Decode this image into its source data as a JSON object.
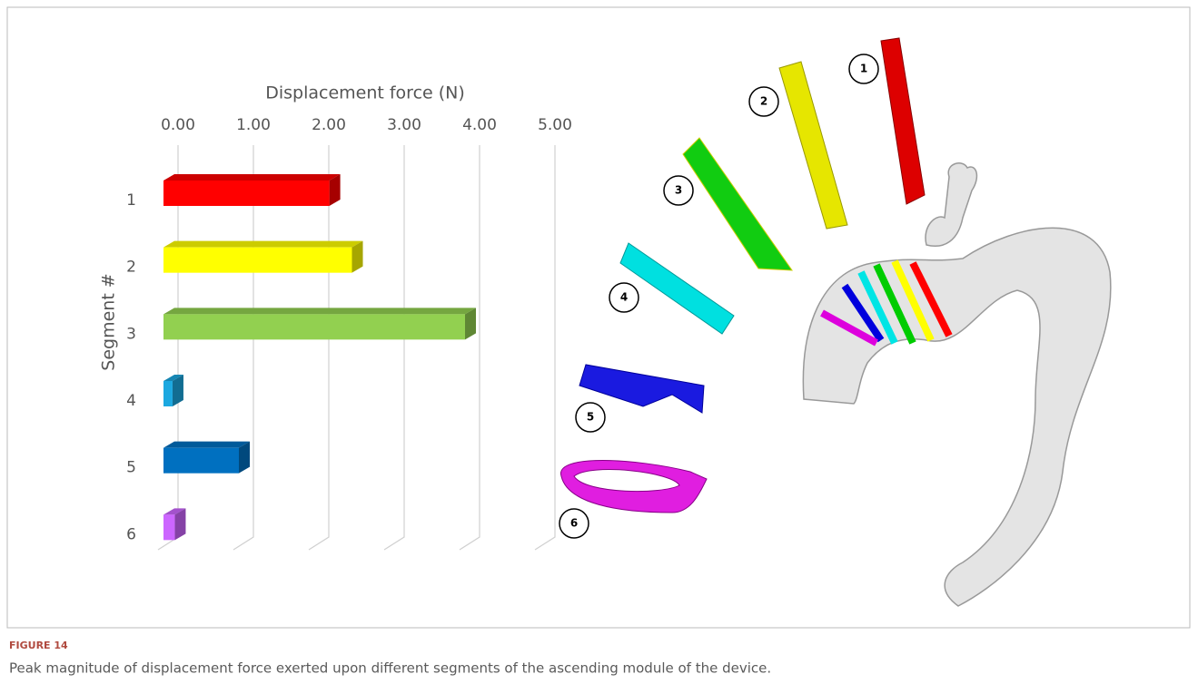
{
  "chart_data": {
    "type": "bar",
    "orientation": "horizontal",
    "x_label": "Displacement force (N)",
    "y_label": "Segment #",
    "categories": [
      "1",
      "2",
      "3",
      "4",
      "5",
      "6"
    ],
    "values": [
      2.2,
      2.5,
      4.0,
      0.12,
      1.0,
      0.15
    ],
    "colors": [
      "#ff0000",
      "#ffff00",
      "#92d050",
      "#1ca8e0",
      "#0070c0",
      "#cc66ff"
    ],
    "xlim": [
      0,
      5
    ],
    "xticks": [
      {
        "value": 0,
        "label": "0.00"
      },
      {
        "value": 1,
        "label": "1.00"
      },
      {
        "value": 2,
        "label": "2.00"
      },
      {
        "value": 3,
        "label": "3.00"
      },
      {
        "value": 4,
        "label": "4.00"
      },
      {
        "value": 5,
        "label": "5.00"
      }
    ],
    "grid": true
  },
  "figure": {
    "label": "FIGURE 14",
    "caption": "Peak magnitude of displacement force exerted upon different segments of the ascending module of the device.",
    "segment_labels": [
      "1",
      "2",
      "3",
      "4",
      "5",
      "6"
    ]
  }
}
